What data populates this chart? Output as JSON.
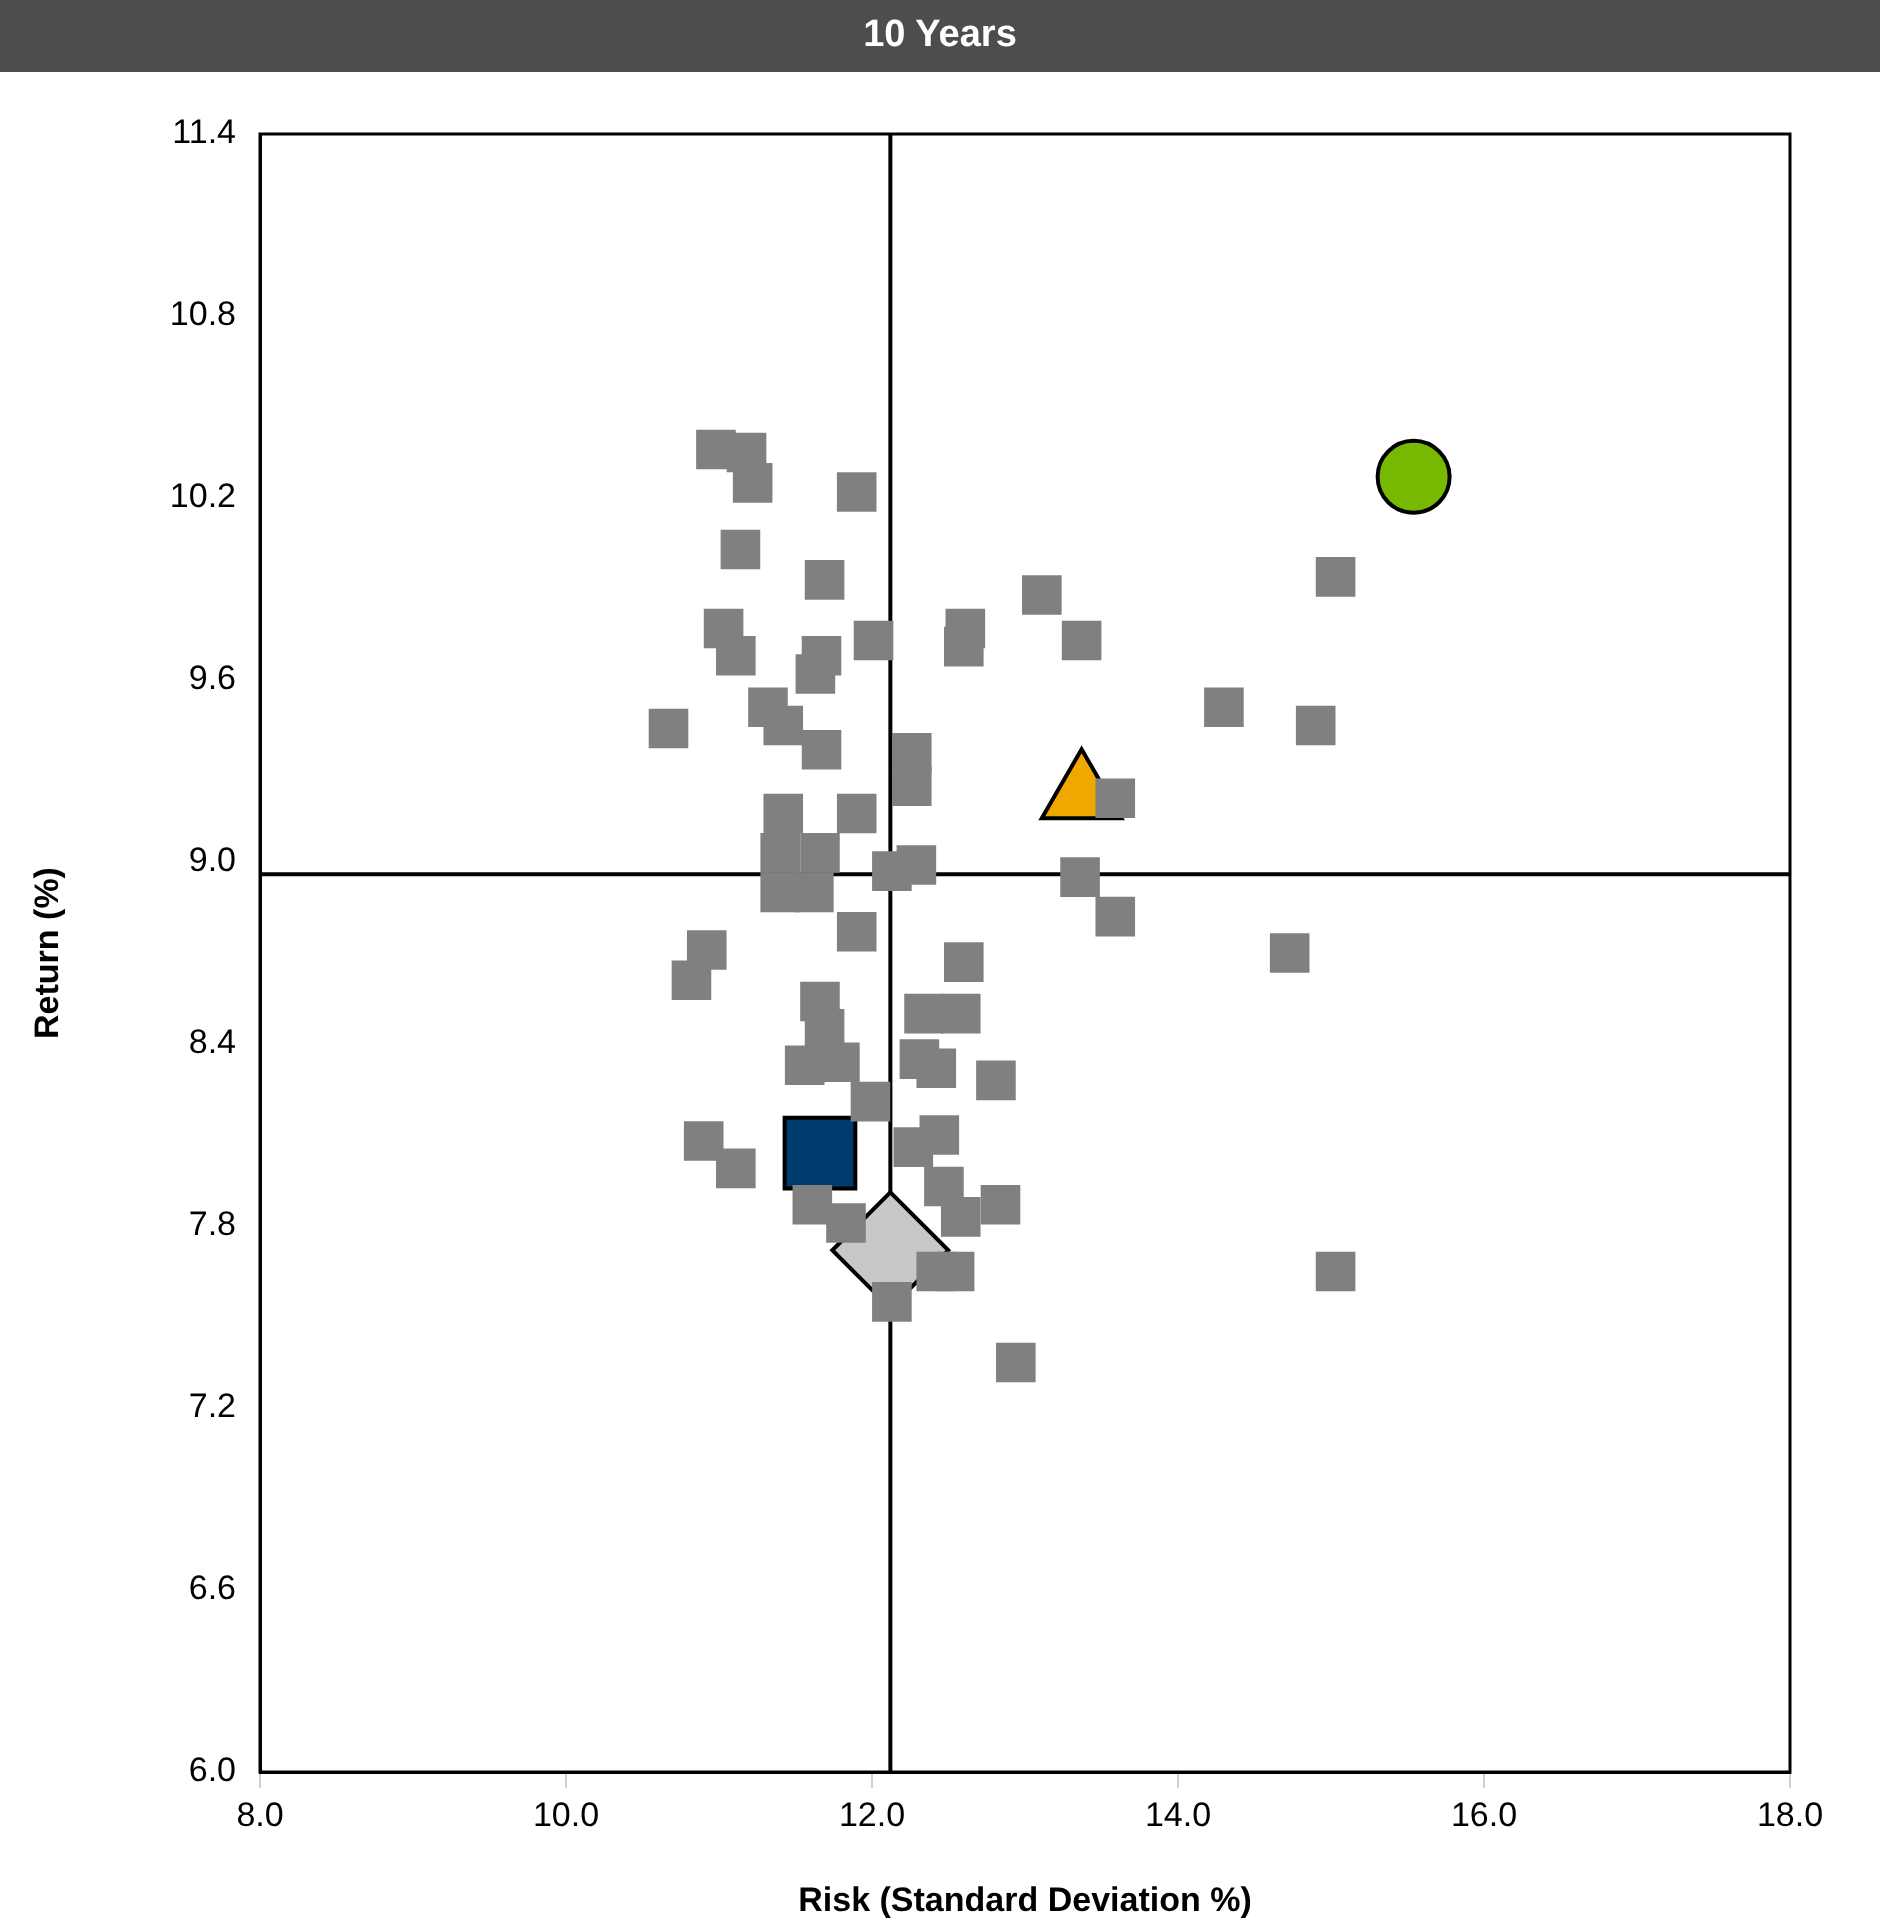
{
  "chart_data": {
    "type": "scatter",
    "title": "10 Years",
    "xlabel": "Risk (Standard Deviation %)",
    "ylabel": "Return (%)",
    "xlim": [
      8,
      18
    ],
    "xticks": [
      {
        "value": 8,
        "label": "8.0"
      },
      {
        "value": 10,
        "label": "10.0"
      },
      {
        "value": 12,
        "label": "12.0"
      },
      {
        "value": 14,
        "label": "14.0"
      },
      {
        "value": 16,
        "label": "16.0"
      },
      {
        "value": 18,
        "label": "18.0"
      }
    ],
    "ylim": [
      6,
      11.4
    ],
    "yticks": [
      {
        "value": 6,
        "label": "6.0"
      },
      6.6,
      7.2,
      7.8,
      8.4,
      {
        "value": 9,
        "label": "9.0"
      },
      9.6,
      10.2,
      10.8,
      11.4
    ],
    "grid": false,
    "legend": false,
    "ref_lines": [
      {
        "axis": "x",
        "value": 12.12,
        "color": "#000000"
      },
      {
        "axis": "y",
        "value": 8.96,
        "color": "#000000"
      }
    ],
    "series": [
      {
        "color": "#808080",
        "marker": "square",
        "x": [
          10.98,
          11.18,
          11.22,
          11.9,
          11.14,
          11.69,
          12.01,
          11.03,
          11.11,
          11.67,
          11.63,
          13.11,
          13.37,
          12.61,
          12.6,
          11.32,
          11.42,
          10.67,
          11.67,
          12.26,
          12.26,
          11.42,
          11.9,
          13.59,
          14.3,
          14.9,
          15.03,
          13.36,
          13.59,
          14.73,
          11.4,
          11.66,
          11.4,
          11.62,
          12.13,
          12.29,
          11.9,
          10.92,
          10.82,
          12.6,
          11.66,
          11.69,
          11.56,
          11.79,
          12.34,
          12.58,
          12.31,
          12.42,
          12.81,
          11.99,
          10.9,
          11.11,
          12.27,
          12.44,
          12.47,
          12.58,
          12.84,
          11.61,
          11.83,
          12.54,
          12.42,
          12.13,
          12.94,
          15.03
        ],
        "values": [
          10.36,
          10.35,
          10.25,
          10.22,
          10.03,
          9.93,
          9.73,
          9.77,
          9.68,
          9.68,
          9.62,
          9.88,
          9.73,
          9.77,
          9.71,
          9.51,
          9.45,
          9.44,
          9.37,
          9.36,
          9.25,
          9.16,
          9.16,
          9.21,
          9.51,
          9.45,
          9.94,
          8.95,
          8.82,
          8.7,
          9.03,
          9.03,
          8.9,
          8.9,
          8.97,
          8.99,
          8.77,
          8.71,
          8.61,
          8.67,
          8.54,
          8.45,
          8.33,
          8.34,
          8.5,
          8.5,
          8.35,
          8.32,
          8.28,
          8.21,
          8.08,
          7.99,
          8.06,
          8.1,
          7.93,
          7.83,
          7.87,
          7.87,
          7.81,
          7.65,
          7.65,
          7.55,
          7.35,
          7.65
        ]
      },
      {
        "color": "#76b900",
        "marker": "circle",
        "x": [
          15.54
        ],
        "values": [
          10.27
        ]
      },
      {
        "color": "#f0a800",
        "marker": "triangle",
        "x": [
          13.37
        ],
        "values": [
          9.22
        ]
      },
      {
        "color": "#003b6f",
        "marker": "square",
        "x": [
          11.66
        ],
        "values": [
          8.04
        ]
      },
      {
        "color": "#c8c8c8",
        "marker": "diamond",
        "x": [
          12.12
        ],
        "values": [
          7.72
        ]
      }
    ]
  }
}
